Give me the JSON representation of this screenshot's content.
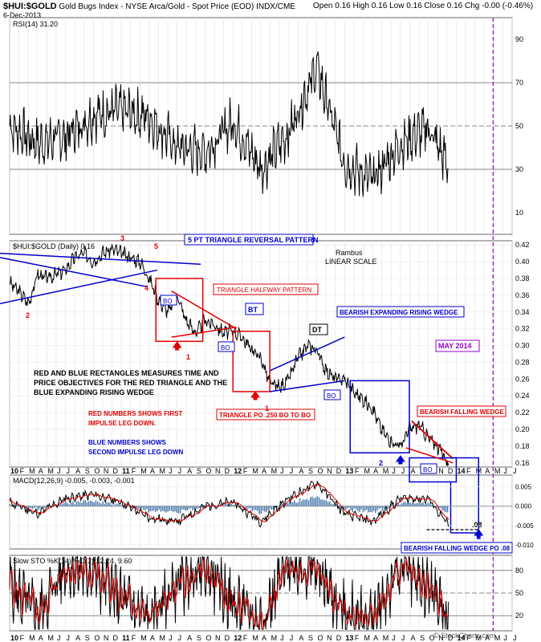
{
  "header": {
    "symbol": "$HUI:$GOLD",
    "description": "Gold Bugs Index - NYSE Arca/Gold - Spot Price (EOD)",
    "source": "INDX/CME",
    "date": "6-Dec-2013",
    "quote": "Open 0.16  High 0.16  Low 0.16  Close 0.16  Chg -0.00 (-0.46%)",
    "watermark": "© StockCharts.com"
  },
  "chart_data": [
    {
      "type": "line",
      "panel": "rsi",
      "legend": "RSI(14) 31.20",
      "ylim": [
        0,
        100
      ],
      "yticks": [
        10,
        30,
        50,
        70,
        90
      ],
      "reference_lines": [
        30,
        50,
        70
      ],
      "x": [
        2010.0,
        2010.25,
        2010.5,
        2010.75,
        2011.0,
        2011.25,
        2011.5,
        2011.75,
        2012.0,
        2012.25,
        2012.5,
        2012.75,
        2013.0,
        2013.25,
        2013.5,
        2013.75,
        2013.93
      ],
      "values": [
        50,
        42,
        45,
        55,
        57,
        54,
        40,
        38,
        52,
        30,
        47,
        77,
        33,
        25,
        42,
        49,
        31.2
      ]
    },
    {
      "type": "line",
      "panel": "price",
      "legend": "$HUI:$GOLD (Daily) 0.16",
      "ylim": [
        0.155,
        0.425
      ],
      "yticks": [
        0.16,
        0.18,
        0.2,
        0.22,
        0.24,
        0.26,
        0.28,
        0.3,
        0.32,
        0.34,
        0.36,
        0.38,
        0.4,
        0.42
      ],
      "ytick_labels": [
        "0.16",
        "0.18",
        "0.20",
        "0.22",
        "0.24",
        "0.26",
        "0.28",
        "0.30",
        "0.32",
        "0.34",
        "0.36",
        "0.38",
        "0.40",
        "0.42"
      ],
      "x": [
        2010.0,
        2010.08,
        2010.17,
        2010.25,
        2010.33,
        2010.42,
        2010.5,
        2010.58,
        2010.67,
        2010.75,
        2010.83,
        2010.92,
        2011.0,
        2011.08,
        2011.17,
        2011.25,
        2011.33,
        2011.42,
        2011.5,
        2011.58,
        2011.67,
        2011.75,
        2011.83,
        2011.92,
        2012.0,
        2012.08,
        2012.17,
        2012.25,
        2012.33,
        2012.42,
        2012.5,
        2012.58,
        2012.67,
        2012.75,
        2012.83,
        2012.92,
        2013.0,
        2013.08,
        2013.17,
        2013.25,
        2013.33,
        2013.42,
        2013.5,
        2013.58,
        2013.67,
        2013.75,
        2013.83,
        2013.93
      ],
      "values": [
        0.375,
        0.365,
        0.35,
        0.385,
        0.38,
        0.385,
        0.39,
        0.405,
        0.41,
        0.4,
        0.41,
        0.415,
        0.41,
        0.405,
        0.4,
        0.38,
        0.355,
        0.34,
        0.36,
        0.33,
        0.315,
        0.33,
        0.325,
        0.315,
        0.318,
        0.31,
        0.295,
        0.285,
        0.255,
        0.25,
        0.26,
        0.285,
        0.3,
        0.295,
        0.27,
        0.26,
        0.26,
        0.245,
        0.235,
        0.225,
        0.2,
        0.185,
        0.18,
        0.2,
        0.205,
        0.19,
        0.18,
        0.16
      ]
    },
    {
      "type": "line",
      "panel": "macd",
      "legend": "MACD(12,26,9) -0.005, -0.003, -0.001",
      "ylim": [
        -0.011,
        0.008
      ],
      "yticks": [
        0.005,
        0.0,
        -0.005,
        -0.01
      ],
      "ytick_labels": [
        "0.005",
        "0.000",
        "-0.005",
        "-0.010"
      ],
      "x": [
        2010.0,
        2010.25,
        2010.5,
        2010.75,
        2011.0,
        2011.25,
        2011.5,
        2011.75,
        2012.0,
        2012.25,
        2012.5,
        2012.75,
        2013.0,
        2013.25,
        2013.5,
        2013.75,
        2013.93
      ],
      "values": [
        0.001,
        -0.002,
        0.002,
        0.003,
        0.001,
        -0.003,
        -0.004,
        0.0,
        0.001,
        -0.004,
        0.002,
        0.006,
        -0.002,
        -0.004,
        0.002,
        0.002,
        -0.005
      ]
    },
    {
      "type": "line",
      "panel": "sto",
      "legend": "Slow STO %K(14) %D(3) 12.24, 9.60",
      "ylim": [
        0,
        100
      ],
      "yticks": [
        20,
        50,
        80
      ],
      "reference_lines": [
        20,
        50,
        80
      ],
      "x": [
        2010.0,
        2010.25,
        2010.5,
        2010.75,
        2011.0,
        2011.25,
        2011.5,
        2011.75,
        2012.0,
        2012.25,
        2012.5,
        2012.75,
        2013.0,
        2013.25,
        2013.5,
        2013.75,
        2013.93
      ],
      "values": [
        60,
        20,
        85,
        80,
        40,
        15,
        60,
        85,
        35,
        10,
        90,
        80,
        20,
        15,
        85,
        60,
        12.24
      ]
    }
  ],
  "x_axis": {
    "top_labels": [
      "10",
      "F",
      "M",
      "A",
      "M",
      "J",
      "J",
      "A",
      "S",
      "O",
      "N",
      "D",
      "11",
      "F",
      "M",
      "A",
      "M",
      "J",
      "J",
      "A",
      "S",
      "O",
      "N",
      "D",
      "12",
      "F",
      "M",
      "A",
      "M",
      "J",
      "J",
      "A",
      "S",
      "O",
      "N",
      "D",
      "13",
      "F",
      "M",
      "A",
      "M",
      "J",
      "J",
      "A",
      "S",
      "O",
      "N",
      "D",
      "14",
      "F",
      "M",
      "A",
      "M",
      "J",
      "J"
    ]
  },
  "annotations": {
    "pt5_triangle": "5 PT TRIANGLE REVERSAL PATTERN",
    "rambus": "Rambus",
    "linear_scale": "LINEAR SCALE",
    "triangle_halfway": "TRIANGLE HALFWAY PATTERN",
    "bearish_wedge": "BEARISH EXPANDING RISING WEDGE",
    "dt": "DT",
    "bt": "BT",
    "bo1": "BO",
    "bo2": "BO",
    "bo3": "BO",
    "bo4": "BO",
    "may2014": "MAY 2014",
    "rect_note_1": "RED AND BLUE RECTANGLES MEASURES TIME AND",
    "rect_note_2": "PRICE OBJECTIVES FOR THE RED TRIANGLE AND THE",
    "rect_note_3": "BLUE EXPANDING RISING WEDGE",
    "red_note_1": "RED NUMBERS SHOWS FIRST",
    "red_note_2": "IMPULSE LEG DOWN.",
    "blue_note_1": "BLUE NUMBERS SHOWS",
    "blue_note_2": "SECOND IMPULSE LEG DOWN",
    "triangle_po": "TRIANGLE PO .250 BO TO BO",
    "bearish_falling": "BEARISH FALLING WEDGE",
    "falling_po": "BEARISH FALLING WEDGE PO .08",
    "po_08": ".08",
    "n1a": "1",
    "n1b": "1",
    "n2": "2",
    "n2b": "2",
    "n3": "3",
    "n4": "4",
    "n5": "5"
  },
  "colors": {
    "red": "#e00000",
    "blue": "#0000cc",
    "purple": "#9900cc",
    "macd_fill": "#4477aa"
  }
}
